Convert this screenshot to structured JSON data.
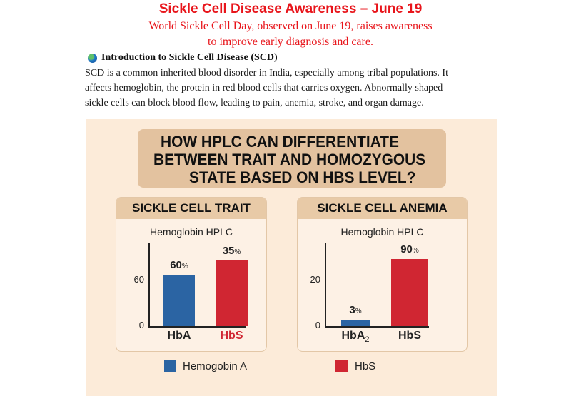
{
  "header": {
    "title": "Sickle Cell Disease Awareness – June 19",
    "subtitle_lines": [
      "World Sickle Cell Day, observed on June 19, raises awareness",
      "to improve early diagnosis and care."
    ]
  },
  "intro": {
    "icon": "globe-icon",
    "heading": "Introduction to Sickle Cell Disease (SCD)",
    "body_lines": [
      "SCD is a common inherited blood disorder in India, especially among tribal populations. It",
      "affects hemoglobin, the protein in red blood cells that carries oxygen. Abnormally shaped",
      "sickle cells can block blood flow, leading to pain, anemia, stroke, and organ damage."
    ]
  },
  "infographic": {
    "question_lines": [
      "HOW HPLC CAN DIFFERENTIATE",
      "BETWEEN TRAIT AND HOMOZYGOUS",
      "STATE BASED ON HBS LEVEL?"
    ],
    "colors": {
      "hba": "#2b64a3",
      "hbs": "#d02632",
      "background": "#fcebd9",
      "header": "#e8caa7"
    },
    "legend": [
      {
        "label": "Hemogobin A",
        "color": "#2b64a3"
      },
      {
        "label": "HbS",
        "color": "#d02632"
      }
    ]
  },
  "chart_data": [
    {
      "type": "bar",
      "panel_title": "SICKLE CELL TRAIT",
      "title": "Hemoglobin HPLC",
      "categories": [
        "HbA",
        "HbS"
      ],
      "values": [
        60,
        35
      ],
      "value_labels": [
        "60",
        "35"
      ],
      "unit": "%",
      "yticks": [
        "0",
        "60"
      ],
      "colors": [
        "#2b64a3",
        "#d02632"
      ],
      "category_colors": [
        "#222222",
        "#d02632"
      ]
    },
    {
      "type": "bar",
      "panel_title": "SICKLE CELL ANEMIA",
      "title": "Hemoglobin HPLC",
      "categories": [
        "HbA",
        "HbS"
      ],
      "category_subscripts": [
        "2",
        ""
      ],
      "values": [
        3,
        90
      ],
      "value_labels": [
        "3",
        "90"
      ],
      "unit": "%",
      "yticks": [
        "0",
        "20"
      ],
      "colors": [
        "#2b64a3",
        "#d02632"
      ],
      "category_colors": [
        "#222222",
        "#222222"
      ]
    }
  ]
}
